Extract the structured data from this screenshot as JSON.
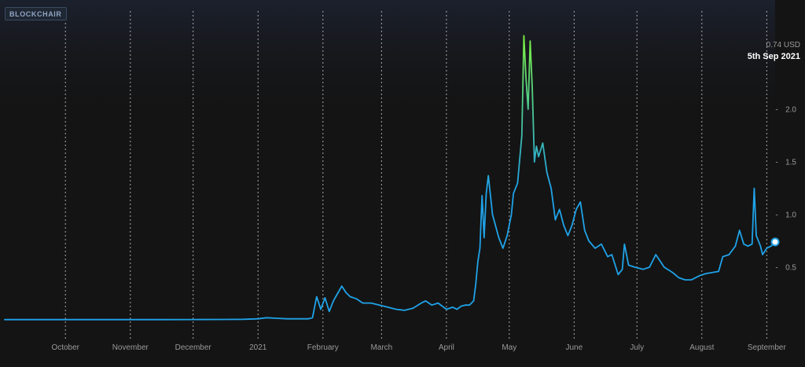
{
  "brand": {
    "label": "BLOCKCHAIR"
  },
  "tooltip": {
    "value": "0.74 USD",
    "date": "5th Sep 2021"
  },
  "colors": {
    "background": "#141414",
    "line_low": "#1fa2e8",
    "line_high": "#7cf03c",
    "grid": "#d8d8d8",
    "axis_text": "#9a9a9a",
    "marker": "#ffffff"
  },
  "chart_data": {
    "type": "line",
    "title": "",
    "xlabel": "",
    "ylabel": "",
    "x_ticks": [
      {
        "date": "2020-10-01",
        "label": "October"
      },
      {
        "date": "2020-11-01",
        "label": "November"
      },
      {
        "date": "2020-12-01",
        "label": "December"
      },
      {
        "date": "2021-01-01",
        "label": "2021"
      },
      {
        "date": "2021-02-01",
        "label": "February"
      },
      {
        "date": "2021-03-01",
        "label": "March"
      },
      {
        "date": "2021-04-01",
        "label": "April"
      },
      {
        "date": "2021-05-01",
        "label": "May"
      },
      {
        "date": "2021-06-01",
        "label": "June"
      },
      {
        "date": "2021-07-01",
        "label": "July"
      },
      {
        "date": "2021-08-01",
        "label": "August"
      },
      {
        "date": "2021-09-01",
        "label": "September"
      }
    ],
    "y_ticks": [
      {
        "value": 0.5,
        "label": "0.5"
      },
      {
        "value": 1.0,
        "label": "1.0"
      },
      {
        "value": 1.5,
        "label": "1.5"
      },
      {
        "value": 2.0,
        "label": "2.0"
      }
    ],
    "xlim": [
      "2020-09-02",
      "2021-09-05"
    ],
    "ylim": [
      0,
      2.74
    ],
    "grid": "vertical dashed",
    "series": [
      {
        "points": [
          [
            "2020-09-02",
            0.002
          ],
          [
            "2020-09-15",
            0.002
          ],
          [
            "2020-10-01",
            0.002
          ],
          [
            "2020-10-15",
            0.002
          ],
          [
            "2020-11-01",
            0.002
          ],
          [
            "2020-11-15",
            0.002
          ],
          [
            "2020-12-01",
            0.003
          ],
          [
            "2020-12-15",
            0.004
          ],
          [
            "2020-12-25",
            0.005
          ],
          [
            "2021-01-01",
            0.01
          ],
          [
            "2021-01-05",
            0.02
          ],
          [
            "2021-01-10",
            0.015
          ],
          [
            "2021-01-15",
            0.01
          ],
          [
            "2021-01-20",
            0.01
          ],
          [
            "2021-01-25",
            0.01
          ],
          [
            "2021-01-27",
            0.02
          ],
          [
            "2021-01-29",
            0.22
          ],
          [
            "2021-01-31",
            0.1
          ],
          [
            "2021-02-02",
            0.21
          ],
          [
            "2021-02-04",
            0.08
          ],
          [
            "2021-02-06",
            0.18
          ],
          [
            "2021-02-08",
            0.25
          ],
          [
            "2021-02-10",
            0.32
          ],
          [
            "2021-02-12",
            0.26
          ],
          [
            "2021-02-14",
            0.22
          ],
          [
            "2021-02-17",
            0.2
          ],
          [
            "2021-02-20",
            0.16
          ],
          [
            "2021-02-24",
            0.16
          ],
          [
            "2021-02-28",
            0.14
          ],
          [
            "2021-03-04",
            0.12
          ],
          [
            "2021-03-08",
            0.1
          ],
          [
            "2021-03-12",
            0.09
          ],
          [
            "2021-03-16",
            0.11
          ],
          [
            "2021-03-20",
            0.16
          ],
          [
            "2021-03-22",
            0.18
          ],
          [
            "2021-03-25",
            0.14
          ],
          [
            "2021-03-28",
            0.16
          ],
          [
            "2021-04-01",
            0.1
          ],
          [
            "2021-04-04",
            0.12
          ],
          [
            "2021-04-06",
            0.1
          ],
          [
            "2021-04-08",
            0.13
          ],
          [
            "2021-04-10",
            0.14
          ],
          [
            "2021-04-12",
            0.14
          ],
          [
            "2021-04-14",
            0.18
          ],
          [
            "2021-04-15",
            0.34
          ],
          [
            "2021-04-16",
            0.55
          ],
          [
            "2021-04-17",
            0.68
          ],
          [
            "2021-04-18",
            1.18
          ],
          [
            "2021-04-19",
            0.78
          ],
          [
            "2021-04-20",
            1.2
          ],
          [
            "2021-04-21",
            1.37
          ],
          [
            "2021-04-23",
            1.0
          ],
          [
            "2021-04-26",
            0.78
          ],
          [
            "2021-04-28",
            0.68
          ],
          [
            "2021-04-30",
            0.8
          ],
          [
            "2021-05-02",
            1.0
          ],
          [
            "2021-05-03",
            1.2
          ],
          [
            "2021-05-05",
            1.3
          ],
          [
            "2021-05-07",
            1.75
          ],
          [
            "2021-05-08",
            2.7
          ],
          [
            "2021-05-09",
            2.3
          ],
          [
            "2021-05-10",
            2.0
          ],
          [
            "2021-05-11",
            2.65
          ],
          [
            "2021-05-12",
            2.2
          ],
          [
            "2021-05-13",
            1.5
          ],
          [
            "2021-05-14",
            1.65
          ],
          [
            "2021-05-15",
            1.55
          ],
          [
            "2021-05-17",
            1.68
          ],
          [
            "2021-05-19",
            1.4
          ],
          [
            "2021-05-21",
            1.25
          ],
          [
            "2021-05-23",
            0.95
          ],
          [
            "2021-05-25",
            1.05
          ],
          [
            "2021-05-27",
            0.9
          ],
          [
            "2021-05-29",
            0.8
          ],
          [
            "2021-05-31",
            0.9
          ],
          [
            "2021-06-02",
            1.05
          ],
          [
            "2021-06-04",
            1.12
          ],
          [
            "2021-06-06",
            0.85
          ],
          [
            "2021-06-08",
            0.75
          ],
          [
            "2021-06-11",
            0.68
          ],
          [
            "2021-06-14",
            0.72
          ],
          [
            "2021-06-17",
            0.6
          ],
          [
            "2021-06-19",
            0.62
          ],
          [
            "2021-06-22",
            0.43
          ],
          [
            "2021-06-24",
            0.48
          ],
          [
            "2021-06-25",
            0.72
          ],
          [
            "2021-06-27",
            0.52
          ],
          [
            "2021-06-30",
            0.5
          ],
          [
            "2021-07-04",
            0.48
          ],
          [
            "2021-07-07",
            0.5
          ],
          [
            "2021-07-10",
            0.62
          ],
          [
            "2021-07-14",
            0.5
          ],
          [
            "2021-07-18",
            0.45
          ],
          [
            "2021-07-21",
            0.4
          ],
          [
            "2021-07-24",
            0.38
          ],
          [
            "2021-07-27",
            0.38
          ],
          [
            "2021-07-31",
            0.42
          ],
          [
            "2021-08-03",
            0.44
          ],
          [
            "2021-08-06",
            0.45
          ],
          [
            "2021-08-09",
            0.46
          ],
          [
            "2021-08-11",
            0.6
          ],
          [
            "2021-08-14",
            0.62
          ],
          [
            "2021-08-17",
            0.7
          ],
          [
            "2021-08-19",
            0.85
          ],
          [
            "2021-08-21",
            0.72
          ],
          [
            "2021-08-23",
            0.7
          ],
          [
            "2021-08-25",
            0.72
          ],
          [
            "2021-08-26",
            1.25
          ],
          [
            "2021-08-27",
            0.8
          ],
          [
            "2021-08-29",
            0.7
          ],
          [
            "2021-08-30",
            0.62
          ],
          [
            "2021-09-01",
            0.68
          ],
          [
            "2021-09-03",
            0.7
          ],
          [
            "2021-09-05",
            0.74
          ]
        ]
      }
    ]
  }
}
